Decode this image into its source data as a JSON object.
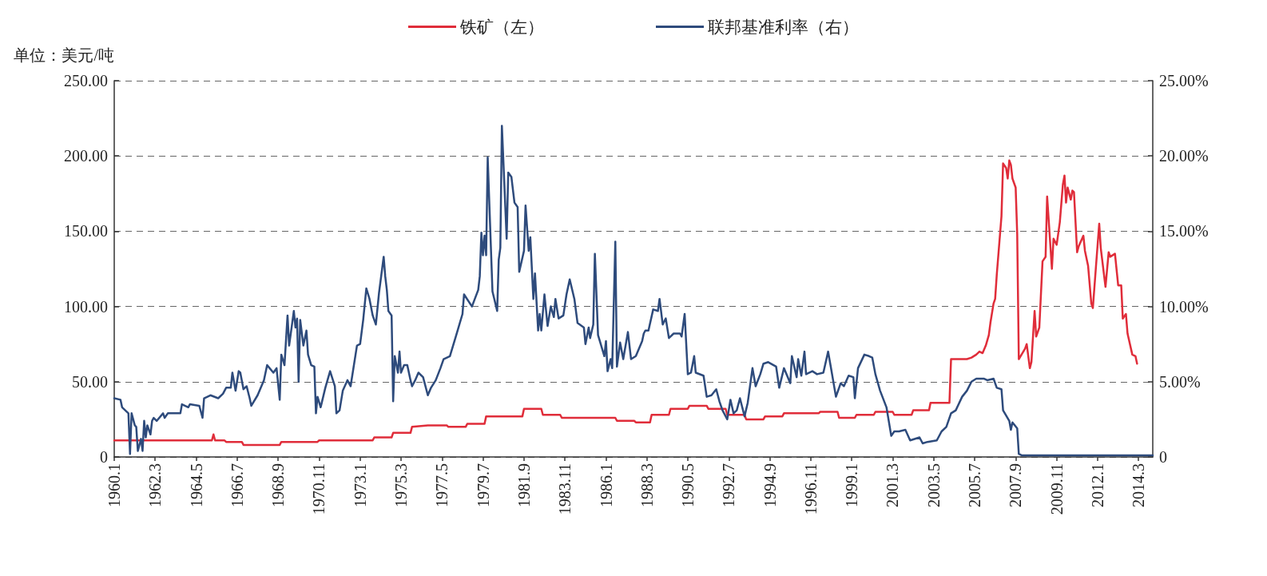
{
  "chart_data": {
    "type": "line",
    "ylabel": "单位：美元/吨",
    "legend": "top",
    "grid": "y",
    "marker": "none",
    "line_style": "solid",
    "xlim": [
      "1960-01",
      "2014-12"
    ],
    "xticks": [
      {
        "value": "1960-01",
        "label": "1960.1"
      },
      {
        "value": "1962-03",
        "label": "1962.3"
      },
      {
        "value": "1964-05",
        "label": "1964.5"
      },
      {
        "value": "1966-07",
        "label": "1966.7"
      },
      {
        "value": "1968-09",
        "label": "1968.9"
      },
      {
        "value": "1970-11",
        "label": "1970.11"
      },
      {
        "value": "1973-01",
        "label": "1973.1"
      },
      {
        "value": "1975-03",
        "label": "1975.3"
      },
      {
        "value": "1977-05",
        "label": "1977.5"
      },
      {
        "value": "1979-07",
        "label": "1979.7"
      },
      {
        "value": "1981-09",
        "label": "1981.9"
      },
      {
        "value": "1983-11",
        "label": "1983.11"
      },
      {
        "value": "1986-01",
        "label": "1986.1"
      },
      {
        "value": "1988-03",
        "label": "1988.3"
      },
      {
        "value": "1990-05",
        "label": "1990.5"
      },
      {
        "value": "1992-07",
        "label": "1992.7"
      },
      {
        "value": "1994-09",
        "label": "1994.9"
      },
      {
        "value": "1996-11",
        "label": "1996.11"
      },
      {
        "value": "1999-01",
        "label": "1999.1"
      },
      {
        "value": "2001-03",
        "label": "2001.3"
      },
      {
        "value": "2003-05",
        "label": "2003.5"
      },
      {
        "value": "2005-07",
        "label": "2005.7"
      },
      {
        "value": "2007-09",
        "label": "2007.9"
      },
      {
        "value": "2009-11",
        "label": "2009.11"
      },
      {
        "value": "2012-01",
        "label": "2012.1"
      },
      {
        "value": "2014-03",
        "label": "2014.3"
      }
    ],
    "ylim": [
      0,
      250
    ],
    "yticks": [
      0,
      {
        "value": 50,
        "label": "50.00"
      },
      {
        "value": 100,
        "label": "100.00"
      },
      {
        "value": 150,
        "label": "150.00"
      },
      {
        "value": 200,
        "label": "200.00"
      },
      {
        "value": 250,
        "label": "250.00"
      }
    ],
    "y2lim": [
      0,
      25
    ],
    "y2ticks": [
      0,
      {
        "value": 5,
        "label": "5.00%"
      },
      {
        "value": 10,
        "label": "10.00%"
      },
      {
        "value": 15,
        "label": "15.00%"
      },
      {
        "value": 20,
        "label": "20.00%"
      },
      {
        "value": 25,
        "label": "25.00%"
      }
    ],
    "series": [
      {
        "name": "铁矿（左）",
        "color": "#e02d3a",
        "x": [
          "1960-01",
          "1965-03",
          "1965-04",
          "1965-05",
          "1965-11",
          "1965-12",
          "1966-10",
          "1966-11",
          "1968-10",
          "1968-11",
          "1970-10",
          "1970-11",
          "1973-09",
          "1973-10",
          "1974-09",
          "1974-10",
          "1975-09",
          "1975-10",
          "1976-08",
          "1977-08",
          "1977-09",
          "1978-08",
          "1978-09",
          "1979-08",
          "1979-09",
          "1981-08",
          "1981-09",
          "1982-08",
          "1982-09",
          "1983-08",
          "1983-09",
          "1986-07",
          "1986-08",
          "1987-07",
          "1987-08",
          "1988-05",
          "1988-06",
          "1989-05",
          "1989-06",
          "1990-05",
          "1990-06",
          "1991-05",
          "1991-06",
          "1992-05",
          "1992-06",
          "1993-05",
          "1993-06",
          "1994-05",
          "1994-06",
          "1995-05",
          "1995-06",
          "1997-04",
          "1997-05",
          "1998-04",
          "1998-05",
          "1999-03",
          "1999-04",
          "2000-03",
          "2000-04",
          "2001-03",
          "2001-04",
          "2002-03",
          "2002-04",
          "2003-02",
          "2003-03",
          "2004-03",
          "2004-04",
          "2005-02",
          "2005-05",
          "2005-08",
          "2005-10",
          "2005-12",
          "2006-02",
          "2006-04",
          "2006-05",
          "2006-07",
          "2006-08",
          "2006-09",
          "2006-12",
          "2007-01",
          "2007-03",
          "2007-04",
          "2007-05",
          "2007-06",
          "2007-07",
          "2007-09",
          "2007-10",
          "2007-11",
          "2008-03",
          "2008-04",
          "2008-06",
          "2008-07",
          "2008-09",
          "2008-10",
          "2008-12",
          "2009-02",
          "2009-04",
          "2009-05",
          "2009-08",
          "2009-09",
          "2009-11",
          "2010-01",
          "2010-03",
          "2010-04",
          "2010-05",
          "2010-06",
          "2010-08",
          "2010-09",
          "2010-10",
          "2010-12",
          "2011-01",
          "2011-04",
          "2011-05",
          "2011-07",
          "2011-09",
          "2011-10",
          "2011-12",
          "2012-02",
          "2012-03",
          "2012-06",
          "2012-08",
          "2012-09",
          "2012-12",
          "2013-02",
          "2013-04",
          "2013-05",
          "2013-07",
          "2013-08",
          "2013-11",
          "2014-01",
          "2014-02"
        ],
        "values": [
          11,
          11,
          15,
          11,
          11,
          10,
          10,
          8,
          8,
          10,
          10,
          11,
          11,
          13,
          13,
          16,
          16,
          20,
          21,
          21,
          20,
          20,
          22,
          22,
          27,
          27,
          32,
          32,
          28,
          28,
          26,
          26,
          24,
          24,
          23,
          23,
          28,
          28,
          32,
          32,
          34,
          34,
          32,
          32,
          28,
          28,
          25,
          25,
          27,
          27,
          29,
          29,
          30,
          30,
          26,
          26,
          28,
          28,
          30,
          30,
          28,
          28,
          31,
          31,
          36,
          36,
          65,
          65,
          66,
          68,
          70,
          69,
          74,
          81,
          89,
          102,
          105,
          121,
          160,
          195,
          192,
          185,
          197,
          194,
          185,
          179,
          148,
          65,
          72,
          75,
          59,
          63,
          97,
          80,
          86,
          130,
          133,
          173,
          125,
          145,
          141,
          156,
          181,
          187,
          169,
          179,
          171,
          177,
          176,
          136,
          140,
          147,
          137,
          127,
          102,
          99,
          127,
          155,
          139,
          113,
          136,
          133,
          135,
          114,
          114,
          92,
          95,
          82,
          68,
          67,
          62
        ]
      },
      {
        "name": "联邦基准利率（右）",
        "color": "#2e4b7c",
        "axis": "y2",
        "x": [
          "1960-01",
          "1960-05",
          "1960-06",
          "1960-10",
          "1960-11",
          "1960-12",
          "1961-02",
          "1961-03",
          "1961-04",
          "1961-06",
          "1961-07",
          "1961-08",
          "1961-09",
          "1961-10",
          "1961-12",
          "1962-01",
          "1962-02",
          "1962-04",
          "1962-08",
          "1962-09",
          "1962-11",
          "1963-07",
          "1963-08",
          "1963-12",
          "1964-01",
          "1964-07",
          "1964-09",
          "1964-10",
          "1965-02",
          "1965-07",
          "1965-10",
          "1965-12",
          "1966-03",
          "1966-04",
          "1966-06",
          "1966-08",
          "1966-09",
          "1966-11",
          "1967-01",
          "1967-03",
          "1967-04",
          "1967-08",
          "1967-12",
          "1968-02",
          "1968-06",
          "1968-08",
          "1968-10",
          "1968-11",
          "1969-01",
          "1969-03",
          "1969-04",
          "1969-07",
          "1969-08",
          "1969-09",
          "1969-10",
          "1969-11",
          "1970-01",
          "1970-03",
          "1970-04",
          "1970-06",
          "1970-08",
          "1970-09",
          "1970-10",
          "1970-12",
          "1971-03",
          "1971-06",
          "1971-09",
          "1971-10",
          "1971-12",
          "1972-02",
          "1972-05",
          "1972-07",
          "1972-11",
          "1973-01",
          "1973-03",
          "1973-05",
          "1973-07",
          "1973-09",
          "1973-11",
          "1974-01",
          "1974-04",
          "1974-05",
          "1974-06",
          "1974-07",
          "1974-09",
          "1974-10",
          "1974-11",
          "1975-01",
          "1975-02",
          "1975-03",
          "1975-05",
          "1975-07",
          "1975-09",
          "1975-10",
          "1975-12",
          "1976-02",
          "1976-05",
          "1976-08",
          "1976-10",
          "1977-01",
          "1977-04",
          "1977-06",
          "1977-10",
          "1978-02",
          "1978-06",
          "1978-07",
          "1978-12",
          "1979-04",
          "1979-05",
          "1979-06",
          "1979-07",
          "1979-08",
          "1979-09",
          "1979-10",
          "1980-01",
          "1980-04",
          "1980-05",
          "1980-06",
          "1980-07",
          "1980-10",
          "1980-11",
          "1981-01",
          "1981-03",
          "1981-05",
          "1981-06",
          "1981-09",
          "1981-10",
          "1981-12",
          "1982-01",
          "1982-03",
          "1982-04",
          "1982-06",
          "1982-07",
          "1982-08",
          "1982-10",
          "1982-12",
          "1983-02",
          "1983-04",
          "1983-05",
          "1983-07",
          "1983-10",
          "1983-12",
          "1984-02",
          "1984-05",
          "1984-07",
          "1984-11",
          "1984-12",
          "1985-02",
          "1985-03",
          "1985-05",
          "1985-06",
          "1985-08",
          "1985-10",
          "1985-12",
          "1986-01",
          "1986-02",
          "1986-04",
          "1986-05",
          "1986-07",
          "1986-08",
          "1986-10",
          "1986-12",
          "1987-03",
          "1987-05",
          "1987-08",
          "1987-12",
          "1988-01",
          "1988-02",
          "1988-04",
          "1988-07",
          "1988-10",
          "1988-11",
          "1989-01",
          "1989-03",
          "1989-05",
          "1989-08",
          "1989-12",
          "1990-01",
          "1990-03",
          "1990-05",
          "1990-07",
          "1990-09",
          "1990-10",
          "1991-03",
          "1991-05",
          "1991-08",
          "1991-11",
          "1992-01",
          "1992-03",
          "1992-06",
          "1992-08",
          "1992-10",
          "1992-12",
          "1993-02",
          "1993-05",
          "1993-07",
          "1993-10",
          "1993-12",
          "1994-03",
          "1994-05",
          "1994-08",
          "1995-01",
          "1995-03",
          "1995-06",
          "1995-10",
          "1995-11",
          "1996-02",
          "1996-03",
          "1996-05",
          "1996-07",
          "1996-08",
          "1996-12",
          "1997-03",
          "1997-07",
          "1997-10",
          "1997-12",
          "1998-03",
          "1998-06",
          "1998-08",
          "1998-11",
          "1999-02",
          "1999-03",
          "1999-05",
          "1999-09",
          "1999-12",
          "2000-02",
          "2000-04",
          "2000-07",
          "2000-11",
          "2001-02",
          "2001-04",
          "2001-07",
          "2001-11",
          "2002-02",
          "2002-08",
          "2002-10",
          "2003-01",
          "2003-07",
          "2003-10",
          "2004-01",
          "2004-04",
          "2004-07",
          "2004-11",
          "2005-02",
          "2005-05",
          "2005-08",
          "2006-01",
          "2006-03",
          "2006-07",
          "2006-09",
          "2006-12",
          "2007-01",
          "2007-05",
          "2007-06",
          "2007-07",
          "2007-10",
          "2007-11",
          "2008-01",
          "2010-01",
          "2014-12"
        ],
        "values": [
          3.9,
          3.8,
          3.3,
          2.9,
          0.2,
          2.9,
          2.1,
          2.0,
          0.4,
          1.2,
          0.4,
          2.4,
          1.3,
          2.1,
          1.5,
          2.4,
          2.6,
          2.4,
          2.9,
          2.6,
          2.9,
          2.9,
          3.5,
          3.3,
          3.5,
          3.4,
          2.6,
          3.9,
          4.1,
          3.9,
          4.2,
          4.6,
          4.6,
          5.6,
          4.4,
          5.7,
          5.6,
          4.5,
          4.7,
          3.9,
          3.4,
          4.1,
          5.1,
          6.1,
          5.6,
          5.9,
          3.8,
          6.8,
          6.1,
          9.4,
          7.4,
          9.7,
          8.6,
          9.2,
          5.0,
          9.1,
          7.4,
          8.4,
          6.8,
          6.1,
          6.0,
          2.9,
          4.0,
          3.3,
          4.6,
          5.7,
          4.7,
          2.9,
          3.1,
          4.4,
          5.1,
          4.7,
          7.4,
          7.5,
          9.1,
          11.2,
          10.5,
          9.4,
          8.8,
          10.9,
          13.3,
          12.0,
          11.1,
          9.7,
          9.4,
          3.7,
          6.7,
          5.6,
          7.0,
          5.6,
          6.1,
          6.1,
          5.1,
          4.7,
          5.1,
          5.6,
          5.3,
          4.1,
          4.6,
          5.1,
          5.9,
          6.5,
          6.7,
          8.1,
          9.5,
          10.8,
          10.0,
          11.1,
          12.0,
          14.9,
          13.4,
          14.7,
          13.4,
          19.9,
          11.0,
          9.7,
          13.1,
          13.9,
          22.0,
          14.5,
          18.9,
          18.6,
          16.9,
          16.6,
          12.3,
          13.7,
          16.7,
          13.7,
          14.6,
          10.5,
          12.2,
          8.4,
          9.5,
          8.4,
          10.8,
          8.7,
          10.0,
          9.3,
          10.5,
          9.2,
          9.4,
          10.8,
          11.8,
          10.5,
          8.9,
          8.6,
          7.5,
          8.6,
          7.9,
          8.8,
          13.5,
          8.1,
          7.4,
          6.7,
          7.7,
          5.7,
          6.5,
          5.9,
          14.3,
          6.0,
          7.6,
          6.5,
          8.3,
          6.5,
          6.7,
          7.7,
          8.2,
          8.4,
          8.4,
          9.8,
          9.7,
          10.5,
          8.8,
          9.2,
          7.9,
          8.2,
          8.2,
          8.0,
          9.5,
          5.5,
          5.6,
          6.7,
          5.6,
          5.4,
          4.0,
          4.1,
          4.5,
          3.7,
          3.1,
          2.5,
          3.8,
          2.9,
          3.1,
          3.9,
          2.7,
          3.6,
          5.9,
          4.7,
          5.5,
          6.2,
          6.3,
          6.0,
          4.6,
          5.9,
          4.9,
          6.7,
          5.3,
          6.5,
          5.4,
          7.0,
          5.5,
          5.7,
          5.5,
          5.6,
          7.0,
          5.8,
          4.0,
          4.9,
          4.7,
          5.4,
          5.3,
          3.9,
          5.9,
          6.8,
          6.7,
          6.6,
          5.5,
          4.4,
          3.3,
          1.4,
          1.7,
          1.7,
          1.8,
          1.1,
          1.3,
          0.9,
          1.0,
          1.1,
          1.7,
          2.0,
          2.9,
          3.1,
          4.0,
          4.4,
          5.0,
          5.2,
          5.2,
          5.1,
          5.2,
          4.6,
          4.5,
          3.1,
          2.4,
          1.8,
          2.3,
          1.9,
          0.2,
          0.1,
          0.1,
          0.1
        ]
      }
    ]
  }
}
